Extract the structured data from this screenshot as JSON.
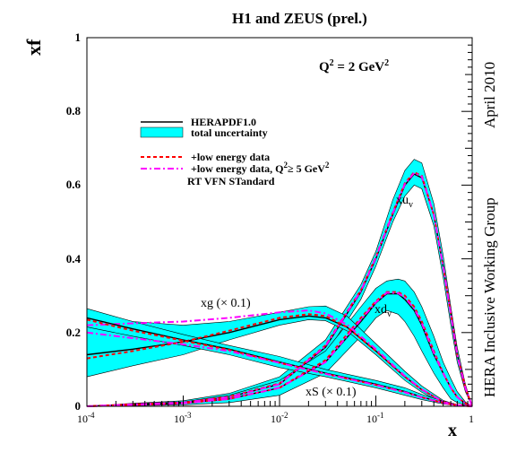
{
  "title": "H1 and ZEUS (prel.)",
  "scale_label": "Q",
  "scale_sup": "2",
  "scale_value": " = 2 GeV",
  "scale_unit_sup": "2",
  "side_label_date": "April 2010",
  "side_label_group": "HERA Inclusive Working Group",
  "colors": {
    "band": "#00ffff",
    "central": "#000000",
    "lowE": "#ff0000",
    "lowEQ": "#ff00ff"
  },
  "legend": {
    "central": "HERAPDF1.0",
    "band": "total uncertainty",
    "lowE": "+low energy data",
    "lowEQ_main": "+low energy data, Q",
    "lowEQ_sup1": "2",
    "lowEQ_mid": "≥ 5 GeV",
    "lowEQ_sup2": "2",
    "scheme": "RT VFN STandard"
  },
  "curve_labels": {
    "xuv_main": "xu",
    "xuv_sub": "v",
    "xdv_main": "xd",
    "xdv_sub": "v",
    "xg": "xg (× 0.1)",
    "xS": "xS (× 0.1)"
  },
  "chart_data": {
    "type": "line",
    "xscale": "log",
    "xlim": [
      0.0001,
      1
    ],
    "ylim": [
      0,
      1
    ],
    "xlabel": "x",
    "ylabel": "xf",
    "xtick_labels": [
      {
        "base": "10",
        "exp": "-4"
      },
      {
        "base": "10",
        "exp": "-3"
      },
      {
        "base": "10",
        "exp": "-2"
      },
      {
        "base": "10",
        "exp": "-1"
      },
      {
        "base": "1",
        "exp": ""
      }
    ],
    "ytick_labels": [
      "0",
      "0.2",
      "0.4",
      "0.6",
      "0.8",
      "1"
    ],
    "series": [
      {
        "name": "xu_v",
        "x": [
          0.0001,
          0.0003,
          0.001,
          0.003,
          0.01,
          0.03,
          0.07,
          0.1,
          0.15,
          0.2,
          0.25,
          0.3,
          0.4,
          0.5,
          0.6,
          0.7,
          0.85,
          1.0
        ],
        "central": [
          0.0,
          0.005,
          0.01,
          0.025,
          0.06,
          0.16,
          0.31,
          0.4,
          0.52,
          0.6,
          0.63,
          0.62,
          0.52,
          0.38,
          0.25,
          0.14,
          0.05,
          0.0
        ],
        "lower": [
          0.0,
          0.003,
          0.006,
          0.015,
          0.04,
          0.14,
          0.29,
          0.38,
          0.5,
          0.57,
          0.6,
          0.59,
          0.49,
          0.35,
          0.22,
          0.12,
          0.04,
          0.0
        ],
        "upper": [
          0.0,
          0.008,
          0.015,
          0.035,
          0.08,
          0.18,
          0.33,
          0.42,
          0.56,
          0.64,
          0.67,
          0.66,
          0.55,
          0.41,
          0.27,
          0.16,
          0.06,
          0.0
        ],
        "lowE": [
          0.0,
          0.005,
          0.01,
          0.026,
          0.062,
          0.165,
          0.315,
          0.405,
          0.525,
          0.605,
          0.635,
          0.625,
          0.52,
          0.38,
          0.25,
          0.14,
          0.05,
          0.0
        ],
        "lowEQ": [
          0.0,
          0.005,
          0.01,
          0.025,
          0.06,
          0.163,
          0.313,
          0.403,
          0.523,
          0.603,
          0.633,
          0.623,
          0.52,
          0.38,
          0.25,
          0.14,
          0.05,
          0.0
        ]
      },
      {
        "name": "xd_v",
        "x": [
          0.0001,
          0.0003,
          0.001,
          0.003,
          0.01,
          0.03,
          0.07,
          0.1,
          0.13,
          0.17,
          0.2,
          0.25,
          0.3,
          0.4,
          0.5,
          0.6,
          0.7,
          0.85,
          1.0
        ],
        "central": [
          0.0,
          0.004,
          0.008,
          0.02,
          0.05,
          0.12,
          0.23,
          0.28,
          0.305,
          0.305,
          0.29,
          0.26,
          0.22,
          0.14,
          0.09,
          0.05,
          0.025,
          0.008,
          0.0
        ],
        "lower": [
          0.0,
          0.002,
          0.004,
          0.01,
          0.03,
          0.09,
          0.19,
          0.24,
          0.26,
          0.25,
          0.23,
          0.19,
          0.15,
          0.09,
          0.05,
          0.02,
          0.01,
          0.004,
          0.0
        ],
        "upper": [
          0.0,
          0.007,
          0.012,
          0.03,
          0.07,
          0.15,
          0.27,
          0.32,
          0.34,
          0.345,
          0.34,
          0.31,
          0.27,
          0.19,
          0.12,
          0.075,
          0.04,
          0.012,
          0.0
        ],
        "lowE": [
          0.0,
          0.004,
          0.008,
          0.02,
          0.05,
          0.125,
          0.24,
          0.285,
          0.31,
          0.31,
          0.3,
          0.27,
          0.23,
          0.15,
          0.09,
          0.05,
          0.025,
          0.008,
          0.0
        ],
        "lowEQ": [
          0.0,
          0.004,
          0.008,
          0.02,
          0.05,
          0.12,
          0.235,
          0.282,
          0.308,
          0.307,
          0.295,
          0.265,
          0.225,
          0.145,
          0.09,
          0.05,
          0.025,
          0.008,
          0.0
        ]
      },
      {
        "name": "xg",
        "x": [
          0.0001,
          0.0003,
          0.001,
          0.003,
          0.01,
          0.02,
          0.03,
          0.05,
          0.1,
          0.2,
          0.3,
          0.5,
          0.7,
          1.0
        ],
        "central": [
          0.14,
          0.155,
          0.175,
          0.2,
          0.235,
          0.245,
          0.24,
          0.215,
          0.15,
          0.08,
          0.045,
          0.012,
          0.003,
          0.0
        ],
        "lower": [
          0.08,
          0.11,
          0.14,
          0.18,
          0.22,
          0.235,
          0.232,
          0.205,
          0.14,
          0.07,
          0.038,
          0.008,
          0.002,
          0.0
        ],
        "upper": [
          0.26,
          0.23,
          0.22,
          0.23,
          0.255,
          0.27,
          0.272,
          0.245,
          0.17,
          0.095,
          0.055,
          0.016,
          0.004,
          0.0
        ],
        "lowE": [
          0.13,
          0.15,
          0.175,
          0.205,
          0.24,
          0.25,
          0.245,
          0.215,
          0.15,
          0.08,
          0.045,
          0.012,
          0.003,
          0.0
        ],
        "lowEQ": [
          0.22,
          0.225,
          0.23,
          0.24,
          0.255,
          0.26,
          0.252,
          0.222,
          0.155,
          0.082,
          0.046,
          0.012,
          0.003,
          0.0
        ]
      },
      {
        "name": "xS",
        "x": [
          0.0001,
          0.0003,
          0.001,
          0.003,
          0.01,
          0.03,
          0.1,
          0.2,
          0.3,
          0.5,
          0.7,
          1.0
        ],
        "central": [
          0.24,
          0.21,
          0.18,
          0.155,
          0.12,
          0.09,
          0.06,
          0.04,
          0.025,
          0.01,
          0.003,
          0.0
        ],
        "lower": [
          0.215,
          0.19,
          0.165,
          0.14,
          0.105,
          0.08,
          0.05,
          0.03,
          0.018,
          0.006,
          0.002,
          0.0
        ],
        "upper": [
          0.265,
          0.23,
          0.195,
          0.165,
          0.135,
          0.1,
          0.07,
          0.05,
          0.032,
          0.014,
          0.005,
          0.0
        ],
        "lowE": [
          0.235,
          0.205,
          0.178,
          0.153,
          0.118,
          0.088,
          0.058,
          0.038,
          0.024,
          0.009,
          0.003,
          0.0
        ],
        "lowEQ": [
          0.2,
          0.185,
          0.168,
          0.15,
          0.118,
          0.088,
          0.058,
          0.038,
          0.024,
          0.009,
          0.003,
          0.0
        ]
      }
    ]
  }
}
